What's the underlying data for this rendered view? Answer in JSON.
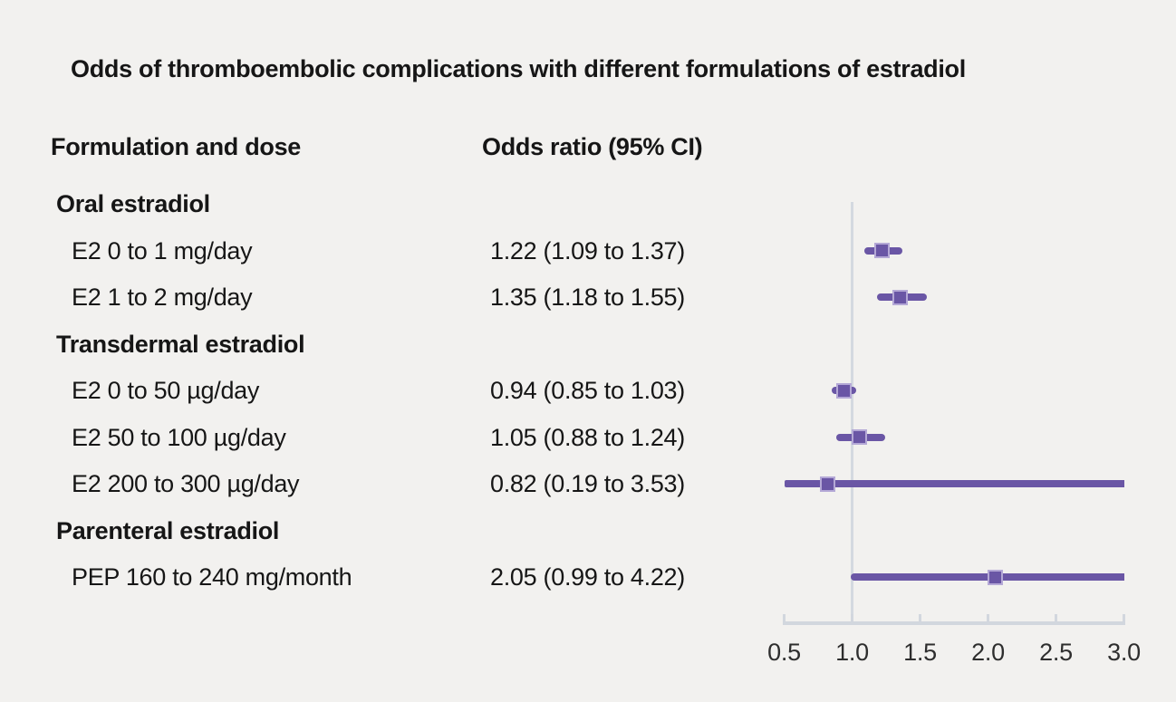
{
  "title": "Odds of thromboembolic complications with different formulations of estradiol",
  "columns": {
    "formulation": "Formulation and dose",
    "odds": "Odds ratio (95% CI)"
  },
  "colors": {
    "background": "#f2f1ef",
    "text": "#161616",
    "marker_fill": "#6a56a5",
    "marker_border": "#b4a8d6",
    "ci_line": "#6a56a5",
    "axis_line": "#d2d7de",
    "reference_line": "#d4d9e0",
    "tick_label": "#2e2e2e"
  },
  "chart_data": {
    "type": "forest",
    "title": "Odds of thromboembolic complications with different formulations of estradiol",
    "xlabel": "Odds ratio",
    "axis_range": [
      0.5,
      3.0
    ],
    "tick_values": [
      0.5,
      1.0,
      1.5,
      2.0,
      2.5,
      3.0
    ],
    "tick_labels": [
      "0.5",
      "1.0",
      "1.5",
      "2.0",
      "2.5",
      "3.0"
    ],
    "reference_value": 1.0,
    "grid": false,
    "rows": [
      {
        "kind": "group",
        "label": "Oral estradiol"
      },
      {
        "kind": "item",
        "label": "E2 0 to 1 mg/day",
        "or_text": "1.22 (1.09 to 1.37)",
        "estimate": 1.22,
        "ci_low": 1.09,
        "ci_high": 1.37
      },
      {
        "kind": "item",
        "label": "E2 1 to 2 mg/day",
        "or_text": "1.35 (1.18 to 1.55)",
        "estimate": 1.35,
        "ci_low": 1.18,
        "ci_high": 1.55
      },
      {
        "kind": "group",
        "label": "Transdermal estradiol"
      },
      {
        "kind": "item",
        "label": "E2 0 to 50 µg/day",
        "or_text": "0.94 (0.85 to 1.03)",
        "estimate": 0.94,
        "ci_low": 0.85,
        "ci_high": 1.03
      },
      {
        "kind": "item",
        "label": "E2 50 to 100 µg/day",
        "or_text": "1.05 (0.88 to 1.24)",
        "estimate": 1.05,
        "ci_low": 0.88,
        "ci_high": 1.24
      },
      {
        "kind": "item",
        "label": "E2 200 to 300 µg/day",
        "or_text": "0.82 (0.19 to 3.53)",
        "estimate": 0.82,
        "ci_low": 0.19,
        "ci_high": 3.53
      },
      {
        "kind": "group",
        "label": "Parenteral estradiol"
      },
      {
        "kind": "item",
        "label": "PEP 160 to 240 mg/month",
        "or_text": "2.05 (0.99 to 4.22)",
        "estimate": 2.05,
        "ci_low": 0.99,
        "ci_high": 4.22
      }
    ]
  }
}
